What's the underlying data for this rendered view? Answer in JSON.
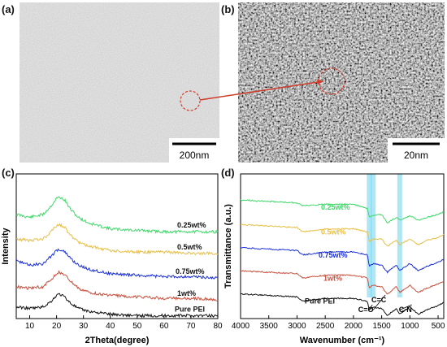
{
  "panels": {
    "a": {
      "label": "(a)",
      "scale_bar": "200nm"
    },
    "b": {
      "label": "(b)",
      "scale_bar": "20nm"
    },
    "c": {
      "label": "(c)"
    },
    "d": {
      "label": "(d)"
    }
  },
  "colors": {
    "green": "#3fd86a",
    "yellow": "#e6c04a",
    "blue": "#1b2fd6",
    "red": "#c8503e",
    "black": "#111111",
    "highlight": "#4ec8e8",
    "connector": "#d23a2a"
  },
  "chart_data": [
    {
      "type": "line",
      "xlabel": "2Theta(degree)",
      "ylabel": "Intensity",
      "xlim": [
        5,
        80
      ],
      "xticks": [
        10,
        20,
        30,
        40,
        50,
        60,
        70,
        80
      ],
      "series": [
        {
          "name": "0.25wt%",
          "color": "#3fd86a",
          "x": [
            5,
            10,
            15,
            18,
            20,
            21,
            23,
            25,
            28,
            32,
            40,
            50,
            60,
            70,
            80
          ],
          "y": [
            0.72,
            0.7,
            0.72,
            0.78,
            0.83,
            0.84,
            0.82,
            0.76,
            0.7,
            0.66,
            0.62,
            0.61,
            0.6,
            0.6,
            0.6
          ]
        },
        {
          "name": "0.5wt%",
          "color": "#e6c04a",
          "x": [
            5,
            10,
            15,
            18,
            20,
            21,
            23,
            25,
            28,
            32,
            40,
            50,
            60,
            70,
            80
          ],
          "y": [
            0.55,
            0.54,
            0.55,
            0.6,
            0.64,
            0.65,
            0.63,
            0.58,
            0.53,
            0.5,
            0.47,
            0.46,
            0.46,
            0.45,
            0.45
          ]
        },
        {
          "name": "0.75wt%",
          "color": "#1b2fd6",
          "x": [
            5,
            10,
            15,
            18,
            20,
            21,
            23,
            25,
            28,
            32,
            40,
            50,
            60,
            70,
            80
          ],
          "y": [
            0.4,
            0.37,
            0.38,
            0.43,
            0.47,
            0.48,
            0.46,
            0.42,
            0.37,
            0.34,
            0.31,
            0.3,
            0.29,
            0.29,
            0.28
          ]
        },
        {
          "name": "1wt%",
          "color": "#c8503e",
          "x": [
            5,
            10,
            15,
            18,
            20,
            21,
            23,
            25,
            28,
            32,
            40,
            50,
            60,
            70,
            80
          ],
          "y": [
            0.22,
            0.21,
            0.22,
            0.27,
            0.31,
            0.32,
            0.3,
            0.26,
            0.21,
            0.18,
            0.16,
            0.15,
            0.14,
            0.14,
            0.13
          ]
        },
        {
          "name": "Pure PEI",
          "color": "#111111",
          "x": [
            5,
            10,
            15,
            18,
            20,
            21,
            23,
            25,
            28,
            32,
            40,
            50,
            60,
            70,
            80
          ],
          "y": [
            0.08,
            0.07,
            0.08,
            0.12,
            0.16,
            0.17,
            0.15,
            0.11,
            0.07,
            0.05,
            0.03,
            0.02,
            0.02,
            0.02,
            0.02
          ]
        }
      ]
    },
    {
      "type": "line",
      "xlabel": "Wavenumber (cm⁻¹)",
      "ylabel": "Transmittance (a.u.)",
      "xlim": [
        4000,
        400
      ],
      "xticks": [
        4000,
        3500,
        3000,
        2500,
        2000,
        1500,
        1000,
        500
      ],
      "annotations": [
        "C=O",
        "C=C",
        "C-N"
      ],
      "highlight_bands": [
        1720,
        1650,
        1180
      ],
      "series": [
        {
          "name": "0.25wt%",
          "color": "#3fd86a",
          "x": [
            4000,
            3500,
            3000,
            2900,
            2500,
            2000,
            1750,
            1720,
            1650,
            1500,
            1400,
            1240,
            1180,
            1000,
            850,
            700,
            500,
            400
          ],
          "y": [
            0.82,
            0.81,
            0.8,
            0.78,
            0.79,
            0.79,
            0.76,
            0.7,
            0.71,
            0.72,
            0.66,
            0.7,
            0.68,
            0.71,
            0.68,
            0.7,
            0.72,
            0.74
          ]
        },
        {
          "name": "0.5wt%",
          "color": "#e6c04a",
          "x": [
            4000,
            3500,
            3000,
            2900,
            2500,
            2000,
            1750,
            1720,
            1650,
            1500,
            1400,
            1240,
            1180,
            1000,
            850,
            700,
            500,
            400
          ],
          "y": [
            0.65,
            0.64,
            0.63,
            0.6,
            0.62,
            0.62,
            0.6,
            0.53,
            0.55,
            0.55,
            0.5,
            0.54,
            0.51,
            0.55,
            0.51,
            0.54,
            0.56,
            0.58
          ]
        },
        {
          "name": "0.75wt%",
          "color": "#1b2fd6",
          "x": [
            4000,
            3500,
            3000,
            2900,
            2500,
            2000,
            1750,
            1720,
            1650,
            1500,
            1400,
            1240,
            1180,
            1000,
            850,
            700,
            500,
            400
          ],
          "y": [
            0.49,
            0.48,
            0.47,
            0.44,
            0.46,
            0.46,
            0.44,
            0.36,
            0.38,
            0.37,
            0.32,
            0.37,
            0.33,
            0.38,
            0.33,
            0.36,
            0.39,
            0.41
          ]
        },
        {
          "name": "1wt%",
          "color": "#c8503e",
          "x": [
            4000,
            3500,
            3000,
            2900,
            2500,
            2000,
            1750,
            1720,
            1650,
            1500,
            1400,
            1240,
            1180,
            1000,
            850,
            700,
            500,
            400
          ],
          "y": [
            0.33,
            0.32,
            0.31,
            0.28,
            0.3,
            0.3,
            0.28,
            0.21,
            0.23,
            0.22,
            0.17,
            0.22,
            0.18,
            0.23,
            0.18,
            0.21,
            0.24,
            0.26
          ]
        },
        {
          "name": "Pure PEI",
          "color": "#111111",
          "x": [
            4000,
            3500,
            3000,
            2900,
            2500,
            2000,
            1750,
            1720,
            1650,
            1500,
            1400,
            1240,
            1180,
            1000,
            850,
            700,
            500,
            400
          ],
          "y": [
            0.17,
            0.16,
            0.15,
            0.12,
            0.14,
            0.14,
            0.12,
            0.06,
            0.08,
            0.07,
            0.02,
            0.07,
            0.03,
            0.08,
            0.03,
            0.06,
            0.09,
            0.11
          ]
        }
      ]
    }
  ]
}
